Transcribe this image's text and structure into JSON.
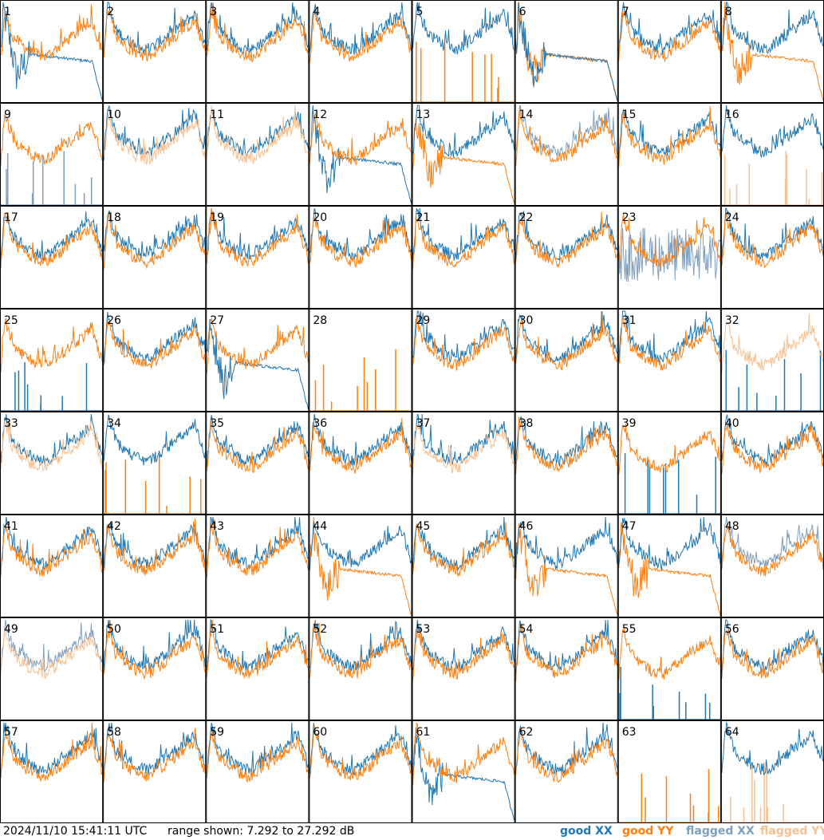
{
  "footer": {
    "timestamp": "2024/11/10 15:41:11 UTC",
    "range_text": "range shown: 7.292 to 27.292 dB"
  },
  "legend": [
    {
      "label": "good XX",
      "color": "#1f77b4"
    },
    {
      "label": "good YY",
      "color": "#ff7f0e"
    },
    {
      "label": "flagged XX",
      "color": "#7f9fbf"
    },
    {
      "label": "flagged YY",
      "color": "#f9c08f"
    }
  ],
  "chart_data": {
    "type": "line",
    "grid": {
      "rows": 8,
      "cols": 8
    },
    "ylim": [
      7.292,
      27.292
    ],
    "tiles": [
      {
        "id": "1",
        "xx": "flat",
        "yy": "good"
      },
      {
        "id": "2",
        "xx": "good",
        "yy": "good"
      },
      {
        "id": "3",
        "xx": "good",
        "yy": "good"
      },
      {
        "id": "4",
        "xx": "good",
        "yy": "good"
      },
      {
        "id": "5",
        "xx": "good",
        "yy": "spikes"
      },
      {
        "id": "6",
        "xx": "flat",
        "yy": "flat"
      },
      {
        "id": "7",
        "xx": "good",
        "yy": "good"
      },
      {
        "id": "8",
        "xx": "good",
        "yy": "flat"
      },
      {
        "id": "9",
        "xx": "flagged_spikes",
        "yy": "good"
      },
      {
        "id": "10",
        "xx": "good",
        "yy": "flagged"
      },
      {
        "id": "11",
        "xx": "good",
        "yy": "flagged"
      },
      {
        "id": "12",
        "xx": "flat",
        "yy": "good"
      },
      {
        "id": "13",
        "xx": "good",
        "yy": "flat"
      },
      {
        "id": "14",
        "xx": "flagged",
        "yy": "good"
      },
      {
        "id": "15",
        "xx": "good",
        "yy": "good"
      },
      {
        "id": "16",
        "xx": "good",
        "yy": "flagged_spikes"
      },
      {
        "id": "17",
        "xx": "good",
        "yy": "good"
      },
      {
        "id": "18",
        "xx": "good",
        "yy": "good"
      },
      {
        "id": "19",
        "xx": "good",
        "yy": "good"
      },
      {
        "id": "20",
        "xx": "good",
        "yy": "good"
      },
      {
        "id": "21",
        "xx": "good",
        "yy": "good"
      },
      {
        "id": "22",
        "xx": "good",
        "yy": "good"
      },
      {
        "id": "23",
        "xx": "flagged_noise",
        "yy": "good"
      },
      {
        "id": "24",
        "xx": "good",
        "yy": "good"
      },
      {
        "id": "25",
        "xx": "spikes",
        "yy": "good"
      },
      {
        "id": "26",
        "xx": "good",
        "yy": "good"
      },
      {
        "id": "27",
        "xx": "flat",
        "yy": "good"
      },
      {
        "id": "28",
        "xx": "none",
        "yy": "spikes"
      },
      {
        "id": "29",
        "xx": "good",
        "yy": "good"
      },
      {
        "id": "30",
        "xx": "good",
        "yy": "good"
      },
      {
        "id": "31",
        "xx": "good",
        "yy": "good"
      },
      {
        "id": "32",
        "xx": "spikes",
        "yy": "flagged"
      },
      {
        "id": "33",
        "xx": "good",
        "yy": "flagged"
      },
      {
        "id": "34",
        "xx": "good",
        "yy": "spikes"
      },
      {
        "id": "35",
        "xx": "good",
        "yy": "good"
      },
      {
        "id": "36",
        "xx": "good",
        "yy": "good"
      },
      {
        "id": "37",
        "xx": "good",
        "yy": "flagged"
      },
      {
        "id": "38",
        "xx": "good",
        "yy": "good"
      },
      {
        "id": "39",
        "xx": "spikes",
        "yy": "good"
      },
      {
        "id": "40",
        "xx": "good",
        "yy": "good"
      },
      {
        "id": "41",
        "xx": "good",
        "yy": "good"
      },
      {
        "id": "42",
        "xx": "good",
        "yy": "good"
      },
      {
        "id": "43",
        "xx": "good",
        "yy": "good"
      },
      {
        "id": "44",
        "xx": "good",
        "yy": "flat"
      },
      {
        "id": "45",
        "xx": "good",
        "yy": "good"
      },
      {
        "id": "46",
        "xx": "good",
        "yy": "flat"
      },
      {
        "id": "47",
        "xx": "good",
        "yy": "flat"
      },
      {
        "id": "48",
        "xx": "flagged",
        "yy": "good"
      },
      {
        "id": "49",
        "xx": "flagged",
        "yy": "flagged"
      },
      {
        "id": "50",
        "xx": "good",
        "yy": "good"
      },
      {
        "id": "51",
        "xx": "good",
        "yy": "good"
      },
      {
        "id": "52",
        "xx": "good",
        "yy": "good"
      },
      {
        "id": "53",
        "xx": "good",
        "yy": "good"
      },
      {
        "id": "54",
        "xx": "good",
        "yy": "good"
      },
      {
        "id": "55",
        "xx": "spikes",
        "yy": "good"
      },
      {
        "id": "56",
        "xx": "good",
        "yy": "good"
      },
      {
        "id": "57",
        "xx": "good",
        "yy": "good"
      },
      {
        "id": "58",
        "xx": "good",
        "yy": "good"
      },
      {
        "id": "59",
        "xx": "good",
        "yy": "good"
      },
      {
        "id": "60",
        "xx": "good",
        "yy": "good"
      },
      {
        "id": "61",
        "xx": "flat",
        "yy": "good"
      },
      {
        "id": "62",
        "xx": "good",
        "yy": "good"
      },
      {
        "id": "63",
        "xx": "none",
        "yy": "spikes"
      },
      {
        "id": "64",
        "xx": "good",
        "yy": "flagged_spikes"
      }
    ]
  }
}
